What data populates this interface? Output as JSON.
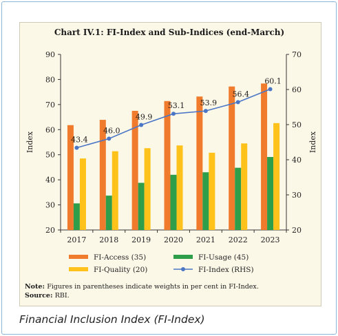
{
  "caption": "Financial Inclusion Index (FI-Index)",
  "chart_data": {
    "type": "bar",
    "title": "Chart IV.1: FI-Index and Sub-Indices (end-March)",
    "categories": [
      "2017",
      "2018",
      "2019",
      "2020",
      "2021",
      "2022",
      "2023"
    ],
    "ylabel": "Index",
    "ylim": [
      20,
      90
    ],
    "y_ticks": [
      "20",
      "30",
      "40",
      "50",
      "60",
      "70",
      "80",
      "90"
    ],
    "y2label": "Index",
    "y2lim": [
      20,
      70
    ],
    "y2_ticks": [
      "20",
      "30",
      "40",
      "50",
      "60",
      "70"
    ],
    "grid": false,
    "legend_position": "bottom",
    "series": [
      {
        "name": "FI-Access (35)",
        "type": "bar",
        "axis": "left",
        "color": "#f07b2c",
        "values": [
          61.8,
          63.9,
          67.5,
          71.4,
          73.2,
          77.2,
          78.4
        ]
      },
      {
        "name": "FI-Usage (45)",
        "type": "bar",
        "axis": "left",
        "color": "#2e9e4a",
        "values": [
          30.6,
          33.7,
          38.8,
          42.0,
          43.0,
          44.8,
          49.1
        ]
      },
      {
        "name": "FI-Quality (20)",
        "type": "bar",
        "axis": "left",
        "color": "#ffc21a",
        "values": [
          48.5,
          51.4,
          52.6,
          53.7,
          50.8,
          54.5,
          62.6
        ]
      },
      {
        "name": "FI-Index (RHS)",
        "type": "line",
        "axis": "right",
        "color": "#4a76c5",
        "values": [
          43.4,
          46.0,
          49.9,
          53.1,
          53.9,
          56.4,
          60.1
        ],
        "labels": [
          "43.4",
          "46.0",
          "49.9",
          "53.1",
          "53.9",
          "56.4",
          "60.1"
        ]
      }
    ],
    "notes": [
      {
        "label": "Note:",
        "text": "Figures in parentheses indicate weights in per cent in FI-Index."
      },
      {
        "label": "Source:",
        "text": "RBI."
      }
    ]
  }
}
